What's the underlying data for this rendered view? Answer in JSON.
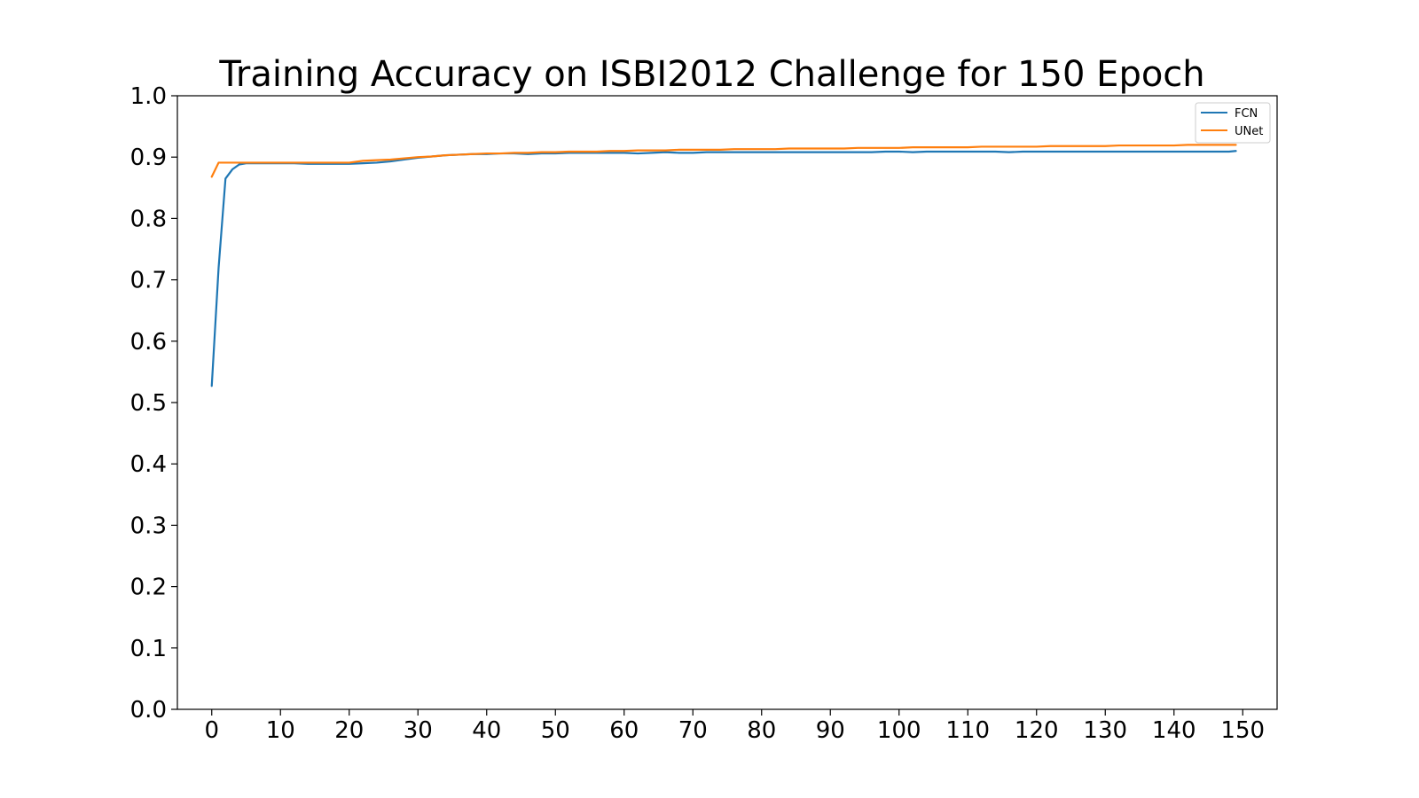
{
  "chart_data": {
    "type": "line",
    "title": "Training Accuracy on ISBI2012 Challenge for 150 Epoch",
    "xlabel": "",
    "ylabel": "",
    "xlim": [
      -5,
      155
    ],
    "ylim": [
      0.0,
      1.0
    ],
    "xticks": [
      0,
      10,
      20,
      30,
      40,
      50,
      60,
      70,
      80,
      90,
      100,
      110,
      120,
      130,
      140,
      150
    ],
    "xtick_labels": [
      "0",
      "10",
      "20",
      "30",
      "40",
      "50",
      "60",
      "70",
      "80",
      "90",
      "100",
      "110",
      "120",
      "130",
      "140",
      "150"
    ],
    "yticks": [
      0.0,
      0.1,
      0.2,
      0.3,
      0.4,
      0.5,
      0.6,
      0.7,
      0.8,
      0.9,
      1.0
    ],
    "ytick_labels": [
      "0.0",
      "0.1",
      "0.2",
      "0.3",
      "0.4",
      "0.5",
      "0.6",
      "0.7",
      "0.8",
      "0.9",
      "1.0"
    ],
    "grid": false,
    "legend_position": "top-right",
    "series": [
      {
        "name": "FCN",
        "color": "#1f77b4",
        "points": [
          [
            0,
            0.527
          ],
          [
            1,
            0.72
          ],
          [
            2,
            0.865
          ],
          [
            3,
            0.88
          ],
          [
            4,
            0.888
          ],
          [
            5,
            0.89
          ],
          [
            6,
            0.89
          ],
          [
            8,
            0.89
          ],
          [
            10,
            0.89
          ],
          [
            12,
            0.89
          ],
          [
            14,
            0.889
          ],
          [
            16,
            0.889
          ],
          [
            18,
            0.889
          ],
          [
            20,
            0.889
          ],
          [
            22,
            0.89
          ],
          [
            24,
            0.891
          ],
          [
            26,
            0.893
          ],
          [
            28,
            0.896
          ],
          [
            30,
            0.899
          ],
          [
            32,
            0.901
          ],
          [
            34,
            0.903
          ],
          [
            36,
            0.904
          ],
          [
            38,
            0.905
          ],
          [
            40,
            0.905
          ],
          [
            42,
            0.906
          ],
          [
            44,
            0.906
          ],
          [
            46,
            0.905
          ],
          [
            48,
            0.906
          ],
          [
            50,
            0.906
          ],
          [
            52,
            0.907
          ],
          [
            54,
            0.907
          ],
          [
            56,
            0.907
          ],
          [
            58,
            0.907
          ],
          [
            60,
            0.907
          ],
          [
            62,
            0.906
          ],
          [
            64,
            0.907
          ],
          [
            66,
            0.908
          ],
          [
            68,
            0.907
          ],
          [
            70,
            0.907
          ],
          [
            72,
            0.908
          ],
          [
            74,
            0.908
          ],
          [
            76,
            0.908
          ],
          [
            78,
            0.908
          ],
          [
            80,
            0.908
          ],
          [
            82,
            0.908
          ],
          [
            84,
            0.908
          ],
          [
            86,
            0.908
          ],
          [
            88,
            0.908
          ],
          [
            90,
            0.908
          ],
          [
            92,
            0.908
          ],
          [
            94,
            0.908
          ],
          [
            96,
            0.908
          ],
          [
            98,
            0.909
          ],
          [
            100,
            0.909
          ],
          [
            102,
            0.908
          ],
          [
            104,
            0.909
          ],
          [
            106,
            0.909
          ],
          [
            108,
            0.909
          ],
          [
            110,
            0.909
          ],
          [
            112,
            0.909
          ],
          [
            114,
            0.909
          ],
          [
            116,
            0.908
          ],
          [
            118,
            0.909
          ],
          [
            120,
            0.909
          ],
          [
            122,
            0.909
          ],
          [
            124,
            0.909
          ],
          [
            126,
            0.909
          ],
          [
            128,
            0.909
          ],
          [
            130,
            0.909
          ],
          [
            132,
            0.909
          ],
          [
            134,
            0.909
          ],
          [
            136,
            0.909
          ],
          [
            138,
            0.909
          ],
          [
            140,
            0.909
          ],
          [
            142,
            0.909
          ],
          [
            144,
            0.909
          ],
          [
            146,
            0.909
          ],
          [
            148,
            0.909
          ],
          [
            149,
            0.91
          ]
        ]
      },
      {
        "name": "UNet",
        "color": "#ff7f0e",
        "points": [
          [
            0,
            0.868
          ],
          [
            1,
            0.891
          ],
          [
            2,
            0.891
          ],
          [
            4,
            0.891
          ],
          [
            6,
            0.891
          ],
          [
            8,
            0.891
          ],
          [
            10,
            0.891
          ],
          [
            12,
            0.891
          ],
          [
            14,
            0.891
          ],
          [
            16,
            0.891
          ],
          [
            18,
            0.891
          ],
          [
            20,
            0.891
          ],
          [
            22,
            0.894
          ],
          [
            24,
            0.895
          ],
          [
            26,
            0.896
          ],
          [
            28,
            0.898
          ],
          [
            30,
            0.9
          ],
          [
            32,
            0.901
          ],
          [
            34,
            0.903
          ],
          [
            36,
            0.904
          ],
          [
            38,
            0.905
          ],
          [
            40,
            0.906
          ],
          [
            42,
            0.906
          ],
          [
            44,
            0.907
          ],
          [
            46,
            0.907
          ],
          [
            48,
            0.908
          ],
          [
            50,
            0.908
          ],
          [
            52,
            0.909
          ],
          [
            54,
            0.909
          ],
          [
            56,
            0.909
          ],
          [
            58,
            0.91
          ],
          [
            60,
            0.91
          ],
          [
            62,
            0.911
          ],
          [
            64,
            0.911
          ],
          [
            66,
            0.911
          ],
          [
            68,
            0.912
          ],
          [
            70,
            0.912
          ],
          [
            72,
            0.912
          ],
          [
            74,
            0.912
          ],
          [
            76,
            0.913
          ],
          [
            78,
            0.913
          ],
          [
            80,
            0.913
          ],
          [
            82,
            0.913
          ],
          [
            84,
            0.914
          ],
          [
            86,
            0.914
          ],
          [
            88,
            0.914
          ],
          [
            90,
            0.914
          ],
          [
            92,
            0.914
          ],
          [
            94,
            0.915
          ],
          [
            96,
            0.915
          ],
          [
            98,
            0.915
          ],
          [
            100,
            0.915
          ],
          [
            102,
            0.916
          ],
          [
            104,
            0.916
          ],
          [
            106,
            0.916
          ],
          [
            108,
            0.916
          ],
          [
            110,
            0.916
          ],
          [
            112,
            0.917
          ],
          [
            114,
            0.917
          ],
          [
            116,
            0.917
          ],
          [
            118,
            0.917
          ],
          [
            120,
            0.917
          ],
          [
            122,
            0.918
          ],
          [
            124,
            0.918
          ],
          [
            126,
            0.918
          ],
          [
            128,
            0.918
          ],
          [
            130,
            0.918
          ],
          [
            132,
            0.919
          ],
          [
            134,
            0.919
          ],
          [
            136,
            0.919
          ],
          [
            138,
            0.919
          ],
          [
            140,
            0.919
          ],
          [
            142,
            0.92
          ],
          [
            144,
            0.92
          ],
          [
            146,
            0.92
          ],
          [
            148,
            0.92
          ],
          [
            149,
            0.92
          ]
        ]
      }
    ]
  }
}
